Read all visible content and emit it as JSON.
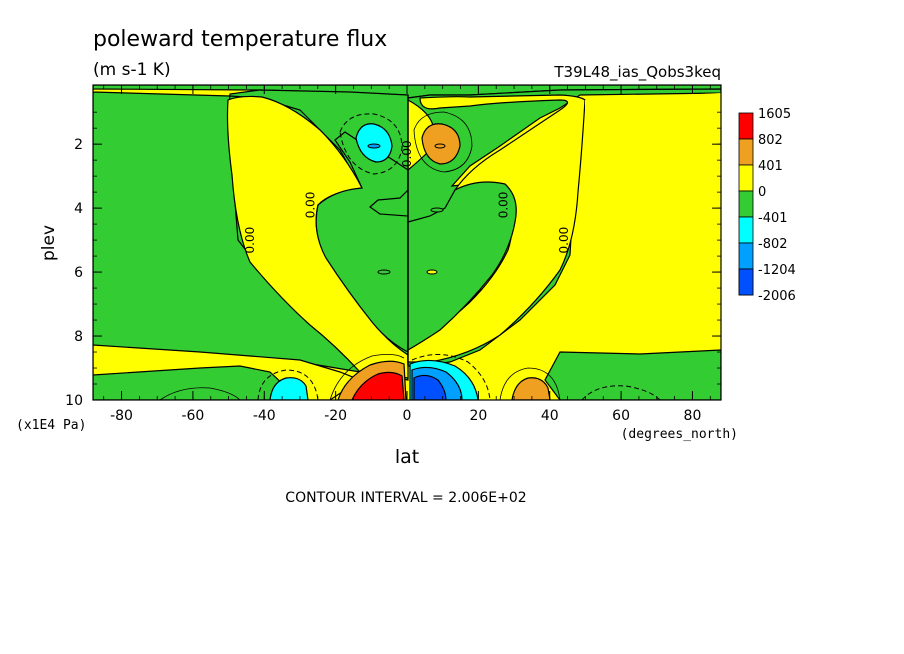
{
  "chart_data": {
    "type": "heatmap",
    "title": "poleward temperature flux",
    "subtitle": "(m s-1 K)",
    "run_label": "T39L48_ias_Qobs3keq",
    "xlabel": "lat",
    "x_units": "(degrees_north)",
    "ylabel": "plev",
    "y_units": "(x1E4 Pa)",
    "xlim": [
      -88,
      88
    ],
    "ylim": [
      10,
      0.15
    ],
    "x_ticks": [
      -80,
      -60,
      -40,
      -20,
      0,
      20,
      40,
      60,
      80
    ],
    "y_ticks": [
      2,
      4,
      6,
      8,
      10
    ],
    "x_tick_labels": [
      "-80",
      "-60",
      "-40",
      "-20",
      "0",
      "20",
      "40",
      "60",
      "80"
    ],
    "y_tick_labels": [
      "2",
      "4",
      "6",
      "8",
      "10"
    ],
    "contour_interval_text": "CONTOUR INTERVAL = 2.006E+02",
    "legend_placement": "right",
    "legend": [
      {
        "label": "1605",
        "color": "#ff0000"
      },
      {
        "label": "802",
        "color": "#f0a020"
      },
      {
        "label": "401",
        "color": "#ffff00"
      },
      {
        "label": "0",
        "color": "#33cc33"
      },
      {
        "label": "-401",
        "color": "#00ffff"
      },
      {
        "label": "-802",
        "color": "#00a0ff"
      },
      {
        "label": "-1204",
        "color": "#0050ff"
      },
      {
        "label": "-2006",
        "color": ""
      }
    ],
    "contour_labels": [
      {
        "text": "0.00",
        "lat": 0,
        "plev": 2.3
      },
      {
        "text": "0.00",
        "lat": -27,
        "plev": 3.9
      },
      {
        "text": "0.00",
        "lat": 27,
        "plev": 3.9
      },
      {
        "text": "0.00",
        "lat": -44,
        "plev": 5.0
      },
      {
        "text": "0.00",
        "lat": 44,
        "plev": 5.0
      }
    ],
    "features": [
      {
        "sign": "negative",
        "level": "-802",
        "lat": -8,
        "plev": 2.0
      },
      {
        "sign": "positive",
        "level": "802",
        "lat": 8,
        "plev": 2.0
      },
      {
        "sign": "positive",
        "level": "1605",
        "lat": -7,
        "plev": 9.5
      },
      {
        "sign": "negative",
        "level": "-1204",
        "lat": 7,
        "plev": 9.5
      },
      {
        "sign": "negative",
        "level": "-802",
        "lat": -33,
        "plev": 9.6
      },
      {
        "sign": "positive",
        "level": "802",
        "lat": 33,
        "plev": 9.7
      }
    ]
  }
}
